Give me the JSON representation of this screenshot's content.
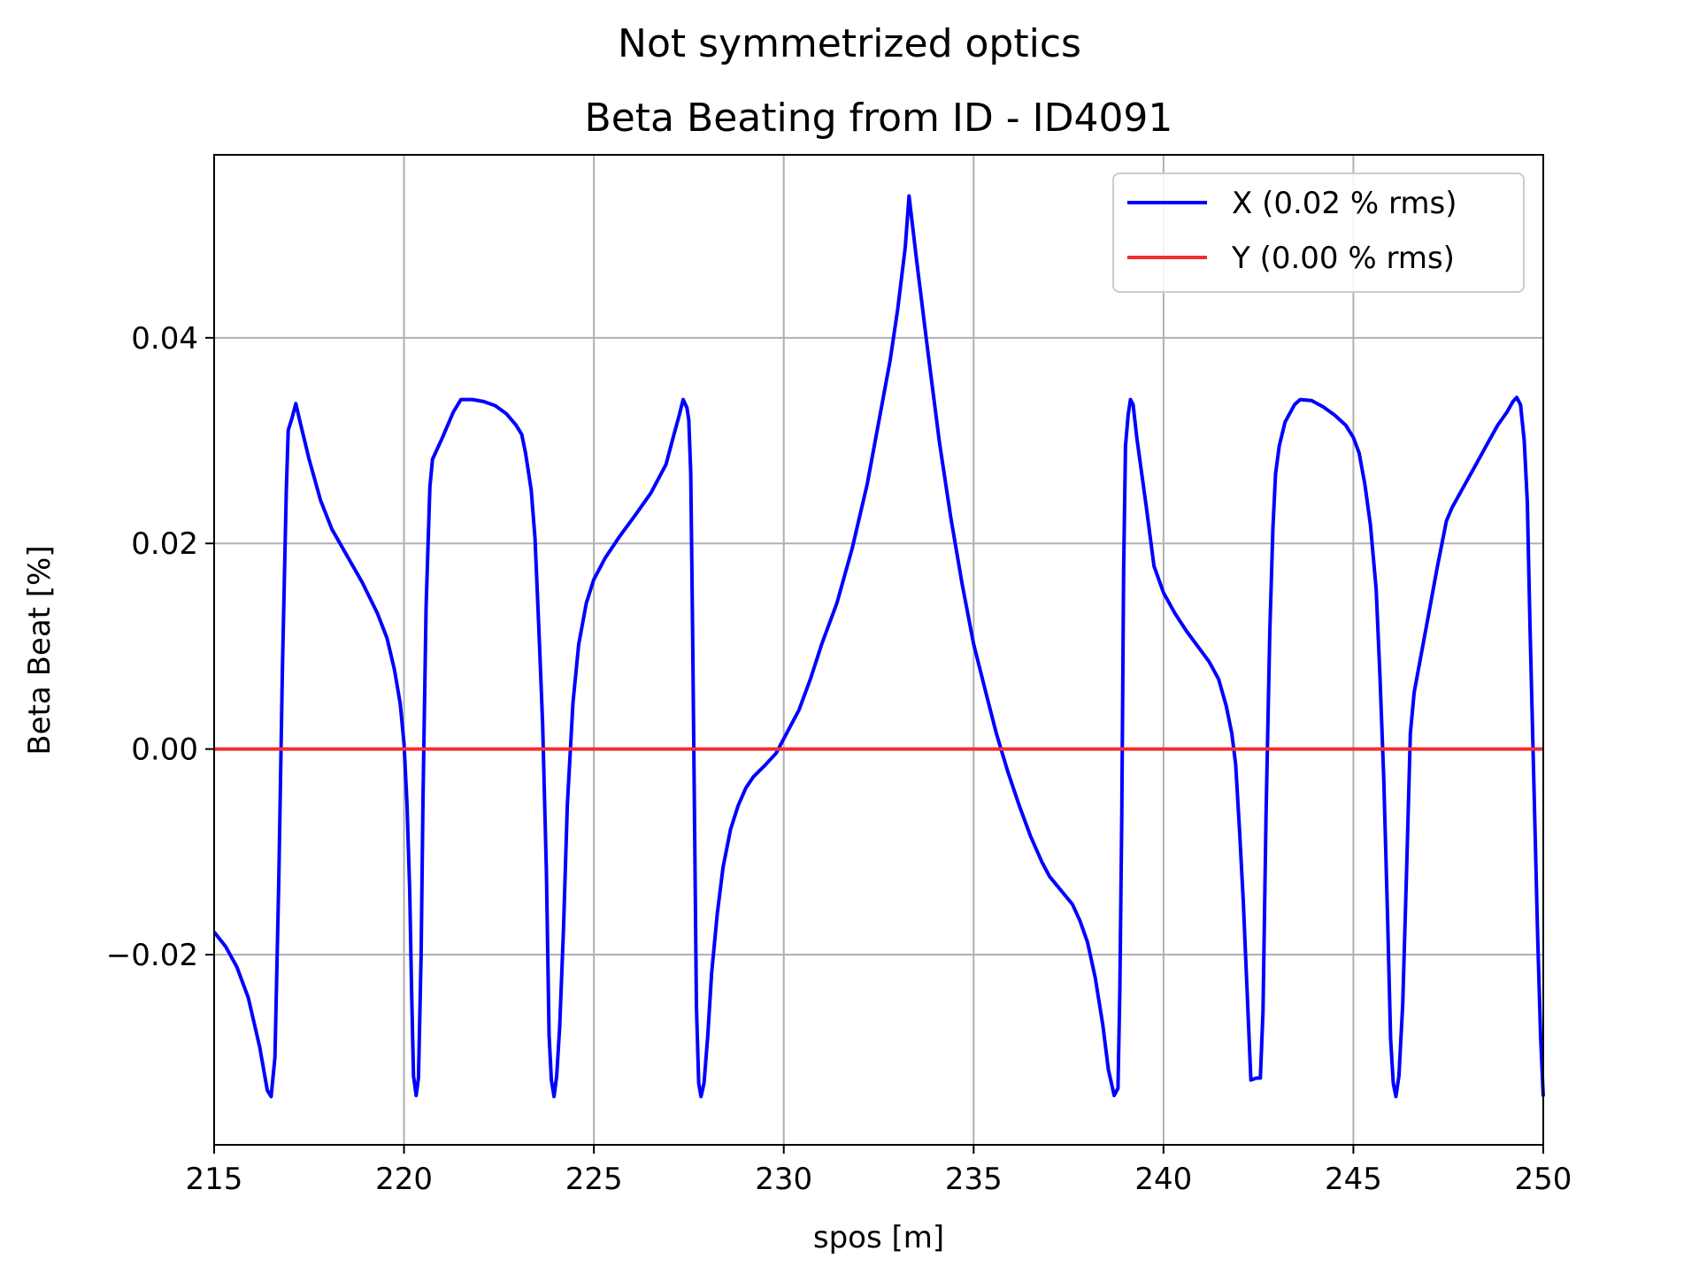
{
  "chart_data": {
    "type": "line",
    "suptitle": "Not symmetrized optics",
    "title": "Beta Beating from ID - ID4091",
    "xlabel": "spos [m]",
    "ylabel": "Beta Beat [%]",
    "xlim": [
      215,
      250
    ],
    "ylim": [
      -0.0385,
      0.0578
    ],
    "xticks": [
      215,
      220,
      225,
      230,
      235,
      240,
      245,
      250
    ],
    "xtick_labels": [
      "215",
      "220",
      "225",
      "230",
      "235",
      "240",
      "245",
      "250"
    ],
    "yticks": [
      -0.02,
      0.0,
      0.02,
      0.04
    ],
    "ytick_labels": [
      "−0.02",
      "0.00",
      "0.02",
      "0.04"
    ],
    "grid": true,
    "legend_position": "top-right",
    "series": [
      {
        "name": "X (0.02 % rms)",
        "color": "#0000ff",
        "points": [
          [
            215.0,
            -0.0178
          ],
          [
            215.3,
            -0.0192
          ],
          [
            215.6,
            -0.0212
          ],
          [
            215.9,
            -0.0242
          ],
          [
            216.2,
            -0.029
          ],
          [
            216.4,
            -0.0332
          ],
          [
            216.5,
            -0.0338
          ],
          [
            216.6,
            -0.03
          ],
          [
            216.7,
            -0.013
          ],
          [
            216.8,
            0.008
          ],
          [
            216.9,
            0.025
          ],
          [
            216.95,
            0.031
          ],
          [
            217.05,
            0.0322
          ],
          [
            217.15,
            0.0336
          ],
          [
            217.25,
            0.032
          ],
          [
            217.5,
            0.0282
          ],
          [
            217.8,
            0.0242
          ],
          [
            218.1,
            0.0214
          ],
          [
            218.5,
            0.0188
          ],
          [
            218.9,
            0.0162
          ],
          [
            219.3,
            0.0132
          ],
          [
            219.55,
            0.0108
          ],
          [
            219.75,
            0.0077
          ],
          [
            219.9,
            0.0044
          ],
          [
            220.0,
            0.0005
          ],
          [
            220.08,
            -0.0055
          ],
          [
            220.15,
            -0.0138
          ],
          [
            220.2,
            -0.0238
          ],
          [
            220.25,
            -0.0318
          ],
          [
            220.32,
            -0.0337
          ],
          [
            220.38,
            -0.032
          ],
          [
            220.45,
            -0.02
          ],
          [
            220.5,
            -0.005
          ],
          [
            220.58,
            0.0138
          ],
          [
            220.68,
            0.0255
          ],
          [
            220.75,
            0.0282
          ],
          [
            221.0,
            0.0302
          ],
          [
            221.3,
            0.0328
          ],
          [
            221.5,
            0.034
          ],
          [
            221.8,
            0.034
          ],
          [
            222.1,
            0.0338
          ],
          [
            222.4,
            0.0334
          ],
          [
            222.7,
            0.0326
          ],
          [
            222.95,
            0.0315
          ],
          [
            223.1,
            0.0306
          ],
          [
            223.2,
            0.0288
          ],
          [
            223.35,
            0.0252
          ],
          [
            223.45,
            0.0205
          ],
          [
            223.55,
            0.0118
          ],
          [
            223.65,
            0.0025
          ],
          [
            223.75,
            -0.012
          ],
          [
            223.82,
            -0.0278
          ],
          [
            223.88,
            -0.0322
          ],
          [
            223.95,
            -0.0338
          ],
          [
            224.02,
            -0.0318
          ],
          [
            224.1,
            -0.027
          ],
          [
            224.2,
            -0.0175
          ],
          [
            224.3,
            -0.0055
          ],
          [
            224.45,
            0.0045
          ],
          [
            224.6,
            0.0102
          ],
          [
            224.8,
            0.0142
          ],
          [
            225.0,
            0.0165
          ],
          [
            225.3,
            0.0186
          ],
          [
            225.7,
            0.0208
          ],
          [
            226.1,
            0.0228
          ],
          [
            226.5,
            0.0249
          ],
          [
            226.9,
            0.0277
          ],
          [
            227.1,
            0.0305
          ],
          [
            227.25,
            0.0325
          ],
          [
            227.35,
            0.034
          ],
          [
            227.45,
            0.0332
          ],
          [
            227.5,
            0.032
          ],
          [
            227.55,
            0.0268
          ],
          [
            227.6,
            0.0115
          ],
          [
            227.65,
            -0.007
          ],
          [
            227.7,
            -0.025
          ],
          [
            227.76,
            -0.0325
          ],
          [
            227.82,
            -0.0338
          ],
          [
            227.9,
            -0.0325
          ],
          [
            228.0,
            -0.0278
          ],
          [
            228.1,
            -0.0218
          ],
          [
            228.25,
            -0.016
          ],
          [
            228.4,
            -0.0115
          ],
          [
            228.6,
            -0.0078
          ],
          [
            228.8,
            -0.0055
          ],
          [
            229.0,
            -0.0038
          ],
          [
            229.2,
            -0.0027
          ],
          [
            229.5,
            -0.0016
          ],
          [
            229.8,
            -0.0004
          ],
          [
            230.1,
            0.0017
          ],
          [
            230.4,
            0.0038
          ],
          [
            230.7,
            0.0068
          ],
          [
            231.0,
            0.0102
          ],
          [
            231.4,
            0.0142
          ],
          [
            231.8,
            0.0195
          ],
          [
            232.2,
            0.0258
          ],
          [
            232.5,
            0.0318
          ],
          [
            232.8,
            0.0378
          ],
          [
            233.0,
            0.0428
          ],
          [
            233.2,
            0.0488
          ],
          [
            233.3,
            0.0538
          ],
          [
            233.5,
            0.0475
          ],
          [
            233.8,
            0.0385
          ],
          [
            234.1,
            0.0298
          ],
          [
            234.4,
            0.0225
          ],
          [
            234.7,
            0.016
          ],
          [
            235.0,
            0.0102
          ],
          [
            235.3,
            0.0058
          ],
          [
            235.6,
            0.0015
          ],
          [
            235.9,
            -0.0022
          ],
          [
            236.2,
            -0.0055
          ],
          [
            236.5,
            -0.0085
          ],
          [
            236.8,
            -0.011
          ],
          [
            237.0,
            -0.0124
          ],
          [
            237.2,
            -0.0133
          ],
          [
            237.4,
            -0.0142
          ],
          [
            237.6,
            -0.0151
          ],
          [
            237.8,
            -0.0167
          ],
          [
            238.0,
            -0.0188
          ],
          [
            238.2,
            -0.0222
          ],
          [
            238.4,
            -0.0268
          ],
          [
            238.55,
            -0.0312
          ],
          [
            238.7,
            -0.0337
          ],
          [
            238.8,
            -0.033
          ],
          [
            238.85,
            -0.0235
          ],
          [
            238.9,
            -0.0065
          ],
          [
            238.95,
            0.0175
          ],
          [
            239.0,
            0.0295
          ],
          [
            239.07,
            0.0325
          ],
          [
            239.13,
            0.034
          ],
          [
            239.2,
            0.0335
          ],
          [
            239.3,
            0.0302
          ],
          [
            239.55,
            0.0235
          ],
          [
            239.75,
            0.0178
          ],
          [
            240.0,
            0.0152
          ],
          [
            240.3,
            0.0132
          ],
          [
            240.6,
            0.0115
          ],
          [
            240.9,
            0.01
          ],
          [
            241.2,
            0.0085
          ],
          [
            241.45,
            0.0068
          ],
          [
            241.65,
            0.0042
          ],
          [
            241.8,
            0.0015
          ],
          [
            241.9,
            -0.0015
          ],
          [
            242.0,
            -0.0078
          ],
          [
            242.1,
            -0.0148
          ],
          [
            242.2,
            -0.0235
          ],
          [
            242.3,
            -0.0322
          ],
          [
            242.45,
            -0.032
          ],
          [
            242.55,
            -0.032
          ],
          [
            242.62,
            -0.0255
          ],
          [
            242.7,
            -0.0065
          ],
          [
            242.8,
            0.0115
          ],
          [
            242.88,
            0.0215
          ],
          [
            242.95,
            0.0268
          ],
          [
            243.05,
            0.0295
          ],
          [
            243.2,
            0.0318
          ],
          [
            243.45,
            0.0335
          ],
          [
            243.6,
            0.034
          ],
          [
            243.9,
            0.0339
          ],
          [
            244.2,
            0.0333
          ],
          [
            244.5,
            0.0325
          ],
          [
            244.8,
            0.0315
          ],
          [
            245.0,
            0.0303
          ],
          [
            245.15,
            0.0288
          ],
          [
            245.3,
            0.0258
          ],
          [
            245.45,
            0.0218
          ],
          [
            245.6,
            0.0155
          ],
          [
            245.7,
            0.007
          ],
          [
            245.8,
            -0.003
          ],
          [
            245.9,
            -0.0165
          ],
          [
            245.98,
            -0.0282
          ],
          [
            246.05,
            -0.0325
          ],
          [
            246.12,
            -0.0338
          ],
          [
            246.2,
            -0.0318
          ],
          [
            246.3,
            -0.0248
          ],
          [
            246.4,
            -0.012
          ],
          [
            246.5,
            0.0015
          ],
          [
            246.6,
            0.0055
          ],
          [
            246.8,
            0.0095
          ],
          [
            247.0,
            0.0135
          ],
          [
            247.2,
            0.0175
          ],
          [
            247.45,
            0.0222
          ],
          [
            247.6,
            0.0235
          ],
          [
            247.9,
            0.0255
          ],
          [
            248.2,
            0.0275
          ],
          [
            248.5,
            0.0295
          ],
          [
            248.8,
            0.0315
          ],
          [
            249.05,
            0.0328
          ],
          [
            249.2,
            0.0338
          ],
          [
            249.3,
            0.0342
          ],
          [
            249.4,
            0.0335
          ],
          [
            249.5,
            0.03
          ],
          [
            249.58,
            0.024
          ],
          [
            249.65,
            0.012
          ],
          [
            249.75,
            -0.003
          ],
          [
            249.85,
            -0.018
          ],
          [
            249.93,
            -0.028
          ],
          [
            250.0,
            -0.0338
          ]
        ]
      },
      {
        "name": "Y (0.00 % rms)",
        "color": "#f03030",
        "points": [
          [
            215.0,
            0.0
          ],
          [
            250.0,
            0.0
          ]
        ]
      }
    ]
  }
}
